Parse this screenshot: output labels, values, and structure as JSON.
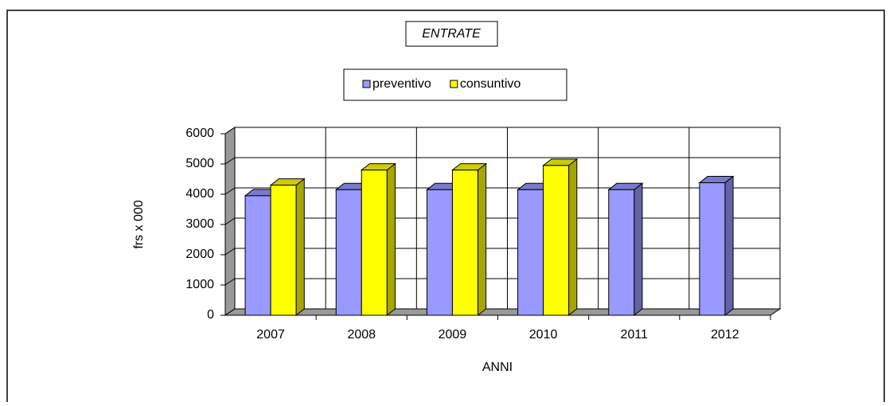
{
  "chart_data": {
    "type": "bar3d",
    "title": "ENTRATE",
    "x_label": "ANNI",
    "y_label": "frs x 000",
    "categories": [
      "2007",
      "2008",
      "2009",
      "2010",
      "2011",
      "2012"
    ],
    "series": [
      {
        "name": "preventivo",
        "color": "#9999ff",
        "values": [
          3950,
          4150,
          4150,
          4150,
          4150,
          4380
        ]
      },
      {
        "name": "consuntivo",
        "color": "#ffff00",
        "values": [
          4300,
          4800,
          4800,
          4950,
          null,
          null
        ]
      }
    ],
    "ylim": [
      0,
      6000
    ],
    "yticks": [
      0,
      1000,
      2000,
      3000,
      4000,
      5000,
      6000
    ],
    "grid": true,
    "legend": "top"
  }
}
